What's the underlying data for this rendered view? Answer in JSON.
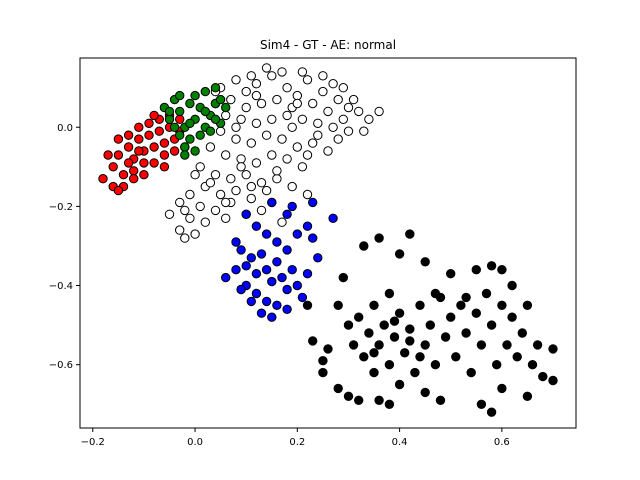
{
  "chart_data": {
    "type": "scatter",
    "title": "Sim4 - GT - AE: normal",
    "xlabel": "",
    "ylabel": "",
    "xlim": [
      -0.225,
      0.745
    ],
    "ylim": [
      -0.76,
      0.175
    ],
    "x_ticks": [
      -0.2,
      0.0,
      0.2,
      0.4,
      0.6
    ],
    "x_tick_labels": [
      "−0.2",
      "0.0",
      "0.2",
      "0.4",
      "0.6"
    ],
    "y_ticks": [
      0.0,
      -0.2,
      -0.4,
      -0.6
    ],
    "y_tick_labels": [
      "0.0",
      "−0.2",
      "−0.4",
      "−0.6"
    ],
    "grid": false,
    "marker_edge_color": "#000000",
    "series": [
      {
        "color": "#ffffff",
        "points": [
          [
            0.05,
            0.1
          ],
          [
            0.08,
            0.12
          ],
          [
            0.1,
            0.09
          ],
          [
            0.12,
            0.11
          ],
          [
            0.15,
            0.13
          ],
          [
            0.18,
            0.1
          ],
          [
            0.2,
            0.08
          ],
          [
            0.22,
            0.12
          ],
          [
            0.25,
            0.09
          ],
          [
            0.28,
            0.07
          ],
          [
            0.3,
            0.05
          ],
          [
            0.32,
            0.04
          ],
          [
            0.27,
            0.11
          ],
          [
            0.23,
            0.06
          ],
          [
            0.19,
            0.05
          ],
          [
            0.16,
            0.07
          ],
          [
            0.13,
            0.06
          ],
          [
            0.1,
            0.05
          ],
          [
            0.07,
            0.07
          ],
          [
            0.04,
            0.06
          ],
          [
            0.06,
            0.03
          ],
          [
            0.09,
            0.02
          ],
          [
            0.12,
            0.01
          ],
          [
            0.15,
            0.02
          ],
          [
            0.18,
            0.03
          ],
          [
            0.21,
            0.02
          ],
          [
            0.24,
            0.01
          ],
          [
            0.27,
            0.0
          ],
          [
            0.3,
            -0.01
          ],
          [
            0.05,
            -0.01
          ],
          [
            0.08,
            -0.03
          ],
          [
            0.11,
            -0.04
          ],
          [
            0.14,
            -0.02
          ],
          [
            0.17,
            -0.03
          ],
          [
            0.2,
            -0.05
          ],
          [
            0.23,
            -0.04
          ],
          [
            0.26,
            -0.06
          ],
          [
            0.03,
            -0.05
          ],
          [
            0.06,
            -0.07
          ],
          [
            0.09,
            -0.08
          ],
          [
            0.12,
            -0.09
          ],
          [
            0.15,
            -0.07
          ],
          [
            0.18,
            -0.08
          ],
          [
            0.21,
            -0.1
          ],
          [
            0.01,
            -0.1
          ],
          [
            0.04,
            -0.12
          ],
          [
            0.07,
            -0.13
          ],
          [
            0.1,
            -0.12
          ],
          [
            0.13,
            -0.14
          ],
          [
            0.16,
            -0.13
          ],
          [
            0.02,
            -0.15
          ],
          [
            0.05,
            -0.17
          ],
          [
            0.08,
            -0.16
          ],
          [
            0.11,
            -0.18
          ],
          [
            0.14,
            -0.16
          ],
          [
            -0.01,
            -0.17
          ],
          [
            0.01,
            -0.2
          ],
          [
            0.04,
            -0.21
          ],
          [
            0.07,
            -0.19
          ],
          [
            0.1,
            -0.22
          ],
          [
            -0.03,
            -0.19
          ],
          [
            -0.01,
            -0.23
          ],
          [
            0.02,
            -0.24
          ],
          [
            -0.05,
            -0.22
          ],
          [
            -0.03,
            -0.26
          ],
          [
            0.0,
            -0.27
          ],
          [
            -0.02,
            -0.28
          ],
          [
            0.19,
            -0.15
          ],
          [
            0.22,
            -0.17
          ],
          [
            0.13,
            -0.21
          ],
          [
            0.17,
            -0.24
          ],
          [
            0.34,
            0.02
          ],
          [
            0.33,
            -0.01
          ],
          [
            0.36,
            0.04
          ],
          [
            0.29,
            0.1
          ],
          [
            0.25,
            0.13
          ],
          [
            0.21,
            0.14
          ],
          [
            0.17,
            0.14
          ],
          [
            0.14,
            0.15
          ],
          [
            0.11,
            0.13
          ],
          [
            0.24,
            -0.02
          ],
          [
            0.28,
            -0.03
          ],
          [
            0.31,
            0.07
          ],
          [
            0.09,
            -0.1
          ],
          [
            0.03,
            -0.14
          ],
          [
            -0.02,
            -0.21
          ],
          [
            0.06,
            -0.19
          ],
          [
            0.0,
            -0.12
          ],
          [
            0.16,
            -0.11
          ],
          [
            0.08,
            0.0
          ],
          [
            0.19,
            0.0
          ],
          [
            0.22,
            -0.07
          ],
          [
            0.26,
            0.04
          ],
          [
            0.12,
            0.08
          ],
          [
            0.04,
            0.09
          ],
          [
            0.15,
            -0.19
          ],
          [
            0.06,
            -0.23
          ],
          [
            0.11,
            -0.15
          ],
          [
            0.2,
            0.06
          ],
          [
            0.29,
            0.02
          ]
        ]
      },
      {
        "color": "#ff0000",
        "points": [
          [
            -0.18,
            -0.13
          ],
          [
            -0.16,
            -0.1
          ],
          [
            -0.15,
            -0.07
          ],
          [
            -0.13,
            -0.05
          ],
          [
            -0.12,
            -0.08
          ],
          [
            -0.11,
            -0.03
          ],
          [
            -0.1,
            -0.06
          ],
          [
            -0.09,
            -0.02
          ],
          [
            -0.08,
            -0.05
          ],
          [
            -0.07,
            -0.01
          ],
          [
            -0.06,
            -0.04
          ],
          [
            -0.05,
            0.0
          ],
          [
            -0.04,
            -0.03
          ],
          [
            -0.03,
            0.02
          ],
          [
            -0.14,
            -0.12
          ],
          [
            -0.12,
            -0.11
          ],
          [
            -0.1,
            -0.09
          ],
          [
            -0.08,
            -0.09
          ],
          [
            -0.06,
            -0.07
          ],
          [
            -0.04,
            -0.06
          ],
          [
            -0.16,
            -0.15
          ],
          [
            -0.14,
            -0.15
          ],
          [
            -0.13,
            -0.02
          ],
          [
            -0.11,
            0.0
          ],
          [
            -0.09,
            0.01
          ],
          [
            -0.07,
            0.02
          ],
          [
            -0.05,
            0.03
          ],
          [
            -0.03,
            -0.01
          ],
          [
            -0.15,
            -0.03
          ],
          [
            -0.17,
            -0.07
          ],
          [
            -0.15,
            -0.16
          ],
          [
            -0.12,
            -0.13
          ],
          [
            -0.02,
            -0.05
          ],
          [
            -0.08,
            0.03
          ],
          [
            -0.06,
            -0.1
          ],
          [
            -0.1,
            -0.12
          ],
          [
            -0.13,
            -0.09
          ],
          [
            -0.11,
            -0.06
          ]
        ]
      },
      {
        "color": "#008000",
        "points": [
          [
            -0.06,
            0.05
          ],
          [
            -0.05,
            0.02
          ],
          [
            -0.04,
            0.07
          ],
          [
            -0.03,
            0.04
          ],
          [
            -0.02,
            0.0
          ],
          [
            -0.01,
            0.06
          ],
          [
            0.0,
            0.02
          ],
          [
            0.0,
            0.08
          ],
          [
            0.01,
            0.05
          ],
          [
            0.02,
            0.0
          ],
          [
            0.02,
            0.09
          ],
          [
            0.03,
            0.03
          ],
          [
            0.04,
            0.06
          ],
          [
            0.04,
            0.1
          ],
          [
            0.05,
            0.01
          ],
          [
            0.05,
            0.07
          ],
          [
            -0.03,
            -0.02
          ],
          [
            -0.02,
            -0.05
          ],
          [
            -0.01,
            -0.03
          ],
          [
            -0.04,
            0.0
          ],
          [
            0.01,
            -0.02
          ],
          [
            0.03,
            -0.01
          ],
          [
            -0.05,
            0.04
          ],
          [
            0.06,
            0.05
          ],
          [
            0.02,
            0.04
          ],
          [
            -0.01,
            0.01
          ],
          [
            0.0,
            -0.06
          ],
          [
            -0.02,
            -0.07
          ],
          [
            0.04,
            0.02
          ],
          [
            -0.03,
            0.08
          ]
        ]
      },
      {
        "color": "#0000ff",
        "points": [
          [
            0.08,
            -0.29
          ],
          [
            0.09,
            -0.31
          ],
          [
            0.1,
            -0.35
          ],
          [
            0.11,
            -0.33
          ],
          [
            0.12,
            -0.37
          ],
          [
            0.13,
            -0.32
          ],
          [
            0.14,
            -0.36
          ],
          [
            0.15,
            -0.39
          ],
          [
            0.16,
            -0.34
          ],
          [
            0.17,
            -0.38
          ],
          [
            0.18,
            -0.41
          ],
          [
            0.19,
            -0.36
          ],
          [
            0.2,
            -0.4
          ],
          [
            0.21,
            -0.43
          ],
          [
            0.22,
            -0.37
          ],
          [
            0.1,
            -0.4
          ],
          [
            0.12,
            -0.42
          ],
          [
            0.14,
            -0.44
          ],
          [
            0.16,
            -0.45
          ],
          [
            0.18,
            -0.46
          ],
          [
            0.13,
            -0.47
          ],
          [
            0.15,
            -0.48
          ],
          [
            0.08,
            -0.36
          ],
          [
            0.09,
            -0.41
          ],
          [
            0.11,
            -0.44
          ],
          [
            0.14,
            -0.27
          ],
          [
            0.16,
            -0.29
          ],
          [
            0.18,
            -0.31
          ],
          [
            0.2,
            -0.27
          ],
          [
            0.22,
            -0.25
          ],
          [
            0.18,
            -0.22
          ],
          [
            0.19,
            -0.2
          ],
          [
            0.23,
            -0.19
          ],
          [
            0.12,
            -0.25
          ],
          [
            0.1,
            -0.22
          ],
          [
            0.15,
            -0.19
          ],
          [
            0.27,
            -0.23
          ],
          [
            0.24,
            -0.33
          ],
          [
            0.23,
            -0.28
          ],
          [
            0.06,
            -0.38
          ]
        ]
      },
      {
        "color": "#000000",
        "points": [
          [
            0.28,
            -0.45
          ],
          [
            0.3,
            -0.5
          ],
          [
            0.31,
            -0.55
          ],
          [
            0.32,
            -0.48
          ],
          [
            0.33,
            -0.58
          ],
          [
            0.34,
            -0.52
          ],
          [
            0.35,
            -0.62
          ],
          [
            0.35,
            -0.45
          ],
          [
            0.36,
            -0.55
          ],
          [
            0.37,
            -0.5
          ],
          [
            0.38,
            -0.6
          ],
          [
            0.38,
            -0.42
          ],
          [
            0.39,
            -0.53
          ],
          [
            0.4,
            -0.65
          ],
          [
            0.4,
            -0.47
          ],
          [
            0.41,
            -0.57
          ],
          [
            0.42,
            -0.51
          ],
          [
            0.43,
            -0.62
          ],
          [
            0.44,
            -0.45
          ],
          [
            0.45,
            -0.55
          ],
          [
            0.46,
            -0.5
          ],
          [
            0.47,
            -0.6
          ],
          [
            0.48,
            -0.43
          ],
          [
            0.49,
            -0.53
          ],
          [
            0.5,
            -0.48
          ],
          [
            0.51,
            -0.58
          ],
          [
            0.52,
            -0.45
          ],
          [
            0.53,
            -0.52
          ],
          [
            0.54,
            -0.62
          ],
          [
            0.55,
            -0.47
          ],
          [
            0.56,
            -0.55
          ],
          [
            0.57,
            -0.42
          ],
          [
            0.58,
            -0.5
          ],
          [
            0.59,
            -0.6
          ],
          [
            0.6,
            -0.45
          ],
          [
            0.61,
            -0.55
          ],
          [
            0.62,
            -0.48
          ],
          [
            0.63,
            -0.58
          ],
          [
            0.64,
            -0.52
          ],
          [
            0.65,
            -0.45
          ],
          [
            0.66,
            -0.6
          ],
          [
            0.67,
            -0.55
          ],
          [
            0.68,
            -0.63
          ],
          [
            0.7,
            -0.56
          ],
          [
            0.7,
            -0.64
          ],
          [
            0.58,
            -0.72
          ],
          [
            0.56,
            -0.7
          ],
          [
            0.48,
            -0.69
          ],
          [
            0.45,
            -0.67
          ],
          [
            0.38,
            -0.7
          ],
          [
            0.36,
            -0.69
          ],
          [
            0.32,
            -0.69
          ],
          [
            0.3,
            -0.68
          ],
          [
            0.28,
            -0.66
          ],
          [
            0.25,
            -0.62
          ],
          [
            0.25,
            -0.59
          ],
          [
            0.23,
            -0.54
          ],
          [
            0.22,
            -0.45
          ],
          [
            0.33,
            -0.3
          ],
          [
            0.36,
            -0.28
          ],
          [
            0.42,
            -0.27
          ],
          [
            0.4,
            -0.32
          ],
          [
            0.45,
            -0.34
          ],
          [
            0.5,
            -0.37
          ],
          [
            0.55,
            -0.36
          ],
          [
            0.58,
            -0.35
          ],
          [
            0.6,
            -0.36
          ],
          [
            0.62,
            -0.4
          ],
          [
            0.53,
            -0.43
          ],
          [
            0.47,
            -0.42
          ],
          [
            0.29,
            -0.38
          ],
          [
            0.26,
            -0.56
          ],
          [
            0.6,
            -0.66
          ],
          [
            0.65,
            -0.68
          ],
          [
            0.42,
            -0.54
          ],
          [
            0.35,
            -0.57
          ],
          [
            0.39,
            -0.49
          ],
          [
            0.44,
            -0.58
          ]
        ]
      }
    ]
  }
}
